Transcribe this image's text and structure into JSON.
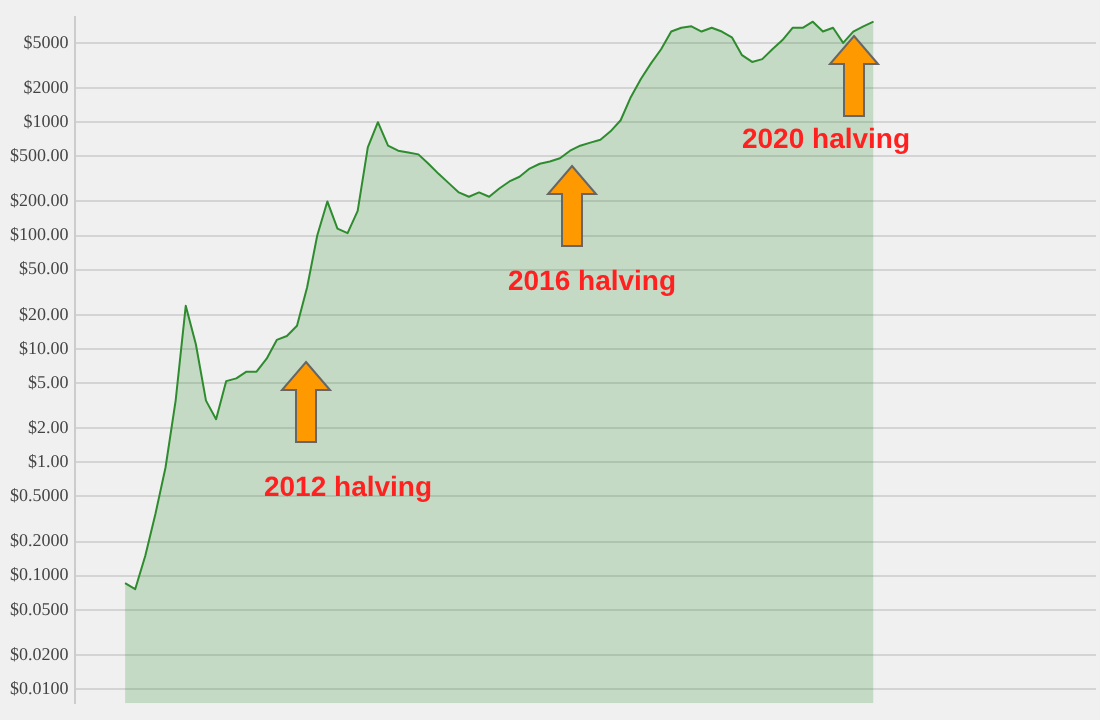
{
  "chart_data": {
    "type": "area",
    "categories": [
      null,
      null,
      null,
      null,
      null,
      null,
      null,
      null,
      null,
      null,
      null,
      null,
      null,
      null,
      null,
      null,
      null,
      null,
      null,
      null,
      null,
      null,
      null,
      null,
      null,
      null,
      null,
      null,
      null,
      null,
      null,
      null,
      null,
      null,
      null,
      null,
      null,
      null,
      null,
      null,
      null,
      null,
      null,
      null,
      null,
      null,
      null,
      null,
      null,
      null,
      null,
      null,
      null,
      null,
      null,
      null,
      null,
      null,
      null,
      null,
      null,
      null,
      null,
      null,
      null,
      null,
      null,
      null,
      null,
      null,
      null,
      null,
      null,
      null,
      null,
      null,
      null,
      null,
      null,
      null,
      null,
      null,
      null,
      null,
      null,
      null,
      null,
      null,
      null,
      null,
      null,
      null,
      null,
      null,
      null,
      null,
      null,
      null,
      null,
      null,
      null,
      null
    ],
    "series": [
      {
        "color": "#2e8b2e",
        "values": [
          null,
          null,
          null,
          null,
          null,
          0.086,
          0.076,
          0.15,
          0.35,
          0.9,
          3.5,
          24,
          11,
          3.5,
          2.4,
          5.2,
          5.5,
          6.3,
          6.3,
          8.2,
          12,
          13,
          16,
          35,
          100,
          200,
          115,
          105,
          165,
          600,
          1000,
          620,
          560,
          540,
          520,
          430,
          350,
          290,
          240,
          220,
          240,
          220,
          260,
          300,
          330,
          390,
          430,
          450,
          480,
          560,
          620,
          660,
          700,
          830,
          1040,
          1660,
          2400,
          3300,
          4400,
          6300,
          6800,
          7000,
          6300,
          6800,
          6300,
          5600,
          3900,
          3400,
          3600,
          4400,
          5300,
          6800,
          6800,
          7700,
          6300,
          6800,
          5000,
          6300,
          7000,
          7700,
          null,
          null,
          null,
          null,
          null,
          null,
          null,
          null,
          null,
          null,
          null,
          null,
          null,
          null,
          null,
          null,
          null,
          null,
          null,
          null,
          null,
          null
        ]
      }
    ],
    "log": "y",
    "ylim": [
      0.0075,
      8500
    ],
    "yticks": [
      {
        "value": 0.01,
        "label": "$0.0100"
      },
      {
        "value": 0.02,
        "label": "$0.0200"
      },
      {
        "value": 0.05,
        "label": "$0.0500"
      },
      {
        "value": 0.1,
        "label": "$0.1000"
      },
      {
        "value": 0.2,
        "label": "$0.2000"
      },
      {
        "value": 0.5,
        "label": "$0.5000"
      },
      {
        "value": 1,
        "label": "$1.00"
      },
      {
        "value": 2,
        "label": "$2.00"
      },
      {
        "value": 5,
        "label": "$5.00"
      },
      {
        "value": 10,
        "label": "$10.00"
      },
      {
        "value": 20,
        "label": "$20.00"
      },
      {
        "value": 50,
        "label": "$50.00"
      },
      {
        "value": 100,
        "label": "$100.00"
      },
      {
        "value": 200,
        "label": "$200.00"
      },
      {
        "value": 500,
        "label": "$500.00"
      },
      {
        "value": 1000,
        "label": "$1000"
      },
      {
        "value": 2000,
        "label": "$2000"
      },
      {
        "value": 5000,
        "label": "$5000"
      }
    ],
    "grid": "y",
    "tick_labels": "y",
    "legend": false,
    "annotations": [
      "2012 halving",
      "2016 halving",
      "2020 halving"
    ]
  }
}
